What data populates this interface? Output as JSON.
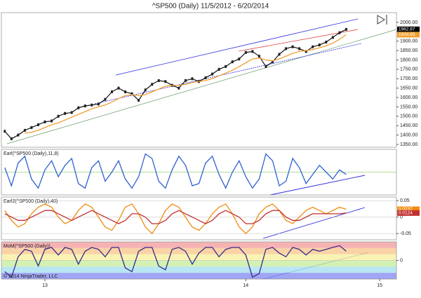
{
  "chart_data": [
    {
      "type": "line",
      "title": "^SP500 (Daily)  11/5/2012 - 6/20/2014",
      "categories": [
        null,
        null,
        null,
        null,
        null,
        null,
        "13",
        null,
        null,
        null,
        null,
        null,
        null,
        null,
        null,
        null,
        null,
        null,
        null,
        null,
        null,
        null,
        null,
        null,
        null,
        null,
        null,
        null,
        null,
        null,
        null,
        null,
        null,
        null,
        null,
        null,
        "14",
        null,
        null,
        null,
        null,
        null,
        null,
        null,
        null,
        null,
        null,
        null,
        null,
        null,
        null,
        null,
        null,
        null,
        null,
        null,
        "15",
        null,
        null
      ],
      "ylim": [
        1335,
        2052
      ],
      "yticks": [
        {
          "value": 1350,
          "label": "1350.00"
        },
        {
          "value": 1400,
          "label": "1400.00"
        },
        {
          "value": 1450,
          "label": "1450.00"
        },
        {
          "value": 1500,
          "label": "1500.00"
        },
        {
          "value": 1550,
          "label": "1550.00"
        },
        {
          "value": 1600,
          "label": "1600.00"
        },
        {
          "value": 1650,
          "label": "1650.00"
        },
        {
          "value": 1700,
          "label": "1700.00"
        },
        {
          "value": 1750,
          "label": "1750.00"
        },
        {
          "value": 1800,
          "label": "1800.00"
        },
        {
          "value": 1850,
          "label": "1850.00"
        },
        {
          "value": 1900,
          "label": "1900.00"
        },
        {
          "value": 1950,
          "label": "1950.00"
        },
        {
          "value": 2000,
          "label": "2000.00"
        }
      ],
      "series": [
        {
          "color": "#000000",
          "values": [
            1420,
            1380,
            1400,
            1425,
            1440,
            1455,
            1470,
            1475,
            1500,
            1515,
            1520,
            1545,
            1555,
            1560,
            1565,
            1590,
            1630,
            1650,
            1630,
            1620,
            1585,
            1640,
            1670,
            1690,
            1685,
            1665,
            1650,
            1690,
            1700,
            1685,
            1705,
            1725,
            1750,
            1765,
            1790,
            1805,
            1840,
            1845,
            1820,
            1765,
            1790,
            1830,
            1860,
            1870,
            1860,
            1845,
            1870,
            1880,
            1895,
            1920,
            1945,
            1962.87,
            null,
            null,
            null,
            null,
            null,
            null,
            null
          ]
        },
        {
          "color": "#f0a030",
          "values": [
            null,
            null,
            null,
            1410,
            1415,
            1425,
            1440,
            1455,
            1465,
            1480,
            1495,
            1510,
            1525,
            1540,
            1550,
            1560,
            1575,
            1595,
            1610,
            1615,
            1610,
            1615,
            1630,
            1645,
            1660,
            1665,
            1665,
            1670,
            1680,
            1685,
            1690,
            1700,
            1715,
            1730,
            1745,
            1765,
            1785,
            1805,
            1810,
            1800,
            1795,
            1805,
            1820,
            1835,
            1845,
            1850,
            1855,
            1865,
            1875,
            1890,
            1910,
            1934.65,
            null,
            null,
            null,
            null,
            null,
            null,
            null
          ]
        }
      ]
    },
    {
      "type": "line",
      "title": "Earl(^SP500 (Daily),11,8)",
      "ylim": [
        -0.1,
        0.1
      ],
      "series": [
        {
          "color": "#3060d0",
          "values": [
            0.02,
            -0.06,
            0.04,
            0.07,
            -0.03,
            -0.07,
            0.01,
            0.05,
            -0.02,
            0.03,
            0.06,
            -0.05,
            -0.07,
            0.02,
            0.05,
            -0.04,
            0.0,
            0.05,
            -0.03,
            -0.07,
            -0.02,
            0.08,
            0.06,
            -0.04,
            -0.07,
            0.01,
            0.07,
            0.03,
            -0.06,
            -0.05,
            0.04,
            0.07,
            -0.01,
            -0.07,
            0.0,
            0.05,
            -0.02,
            -0.07,
            -0.03,
            0.08,
            0.05,
            -0.06,
            -0.04,
            0.06,
            0.02,
            -0.05,
            -0.01,
            0.03,
            0.0,
            -0.03,
            0.01,
            -0.01,
            null,
            null,
            null,
            null,
            null,
            null,
            null
          ]
        }
      ]
    },
    {
      "type": "line",
      "title": "Earl2(^SP500 (Daily),40)",
      "ylim": [
        -0.069,
        0.061
      ],
      "yticks": [
        0.05,
        0,
        -0.05
      ],
      "series": [
        {
          "color": "#f08c10",
          "values": [
            0.02,
            -0.01,
            -0.03,
            -0.02,
            0.01,
            0.03,
            0.04,
            0.03,
            0.0,
            -0.02,
            -0.01,
            0.02,
            0.04,
            0.03,
            0.0,
            -0.03,
            -0.04,
            -0.01,
            0.03,
            0.04,
            0.01,
            -0.03,
            -0.05,
            -0.02,
            0.02,
            0.04,
            0.03,
            0.0,
            -0.03,
            -0.04,
            -0.02,
            0.01,
            0.03,
            0.04,
            0.01,
            -0.03,
            -0.05,
            -0.03,
            0.01,
            0.03,
            0.04,
            0.02,
            -0.01,
            -0.02,
            0.0,
            0.02,
            0.03,
            0.02,
            0.01,
            0.02,
            0.03,
            0.0237,
            null,
            null,
            null,
            null,
            null,
            null,
            null
          ]
        },
        {
          "color": "#c03030",
          "values": [
            0.01,
            0.0,
            -0.01,
            -0.01,
            0.0,
            0.01,
            0.02,
            0.02,
            0.01,
            0.0,
            -0.01,
            0.0,
            0.01,
            0.02,
            0.01,
            0.0,
            -0.01,
            -0.02,
            -0.01,
            0.01,
            0.01,
            0.0,
            -0.02,
            -0.02,
            -0.01,
            0.01,
            0.02,
            0.01,
            0.0,
            -0.01,
            -0.02,
            -0.01,
            0.01,
            0.02,
            0.01,
            0.0,
            -0.02,
            -0.02,
            -0.01,
            0.01,
            0.02,
            0.02,
            0.0,
            -0.01,
            -0.01,
            0.0,
            0.01,
            0.01,
            0.01,
            0.01,
            0.01,
            0.0124,
            null,
            null,
            null,
            null,
            null,
            null,
            null
          ]
        }
      ]
    },
    {
      "type": "line",
      "title": "MoM(^SP500 (Daily))",
      "ylim": [
        -1,
        1
      ],
      "yticks": [
        0
      ],
      "footnote": "© 2014 NinjaTrader, LLC",
      "series": [
        {
          "color": "#3a2a8a",
          "values": [
            -0.6,
            -0.9,
            0.2,
            0.6,
            0.5,
            -0.3,
            0.6,
            0.7,
            0.3,
            0.7,
            0.6,
            -0.2,
            0.5,
            0.7,
            0.6,
            0.2,
            0.7,
            0.7,
            -0.4,
            -0.6,
            0.5,
            0.7,
            0.7,
            -0.3,
            -0.5,
            0.6,
            0.7,
            0.5,
            -0.2,
            0.4,
            0.7,
            0.7,
            0.2,
            0.6,
            0.7,
            0.7,
            0.3,
            -0.9,
            -0.7,
            0.6,
            0.7,
            0.4,
            0.2,
            0.7,
            0.6,
            0.3,
            0.6,
            0.5,
            0.6,
            0.7,
            0.8,
            0.5,
            null,
            null,
            null,
            null,
            null,
            null,
            null
          ]
        }
      ]
    }
  ]
}
